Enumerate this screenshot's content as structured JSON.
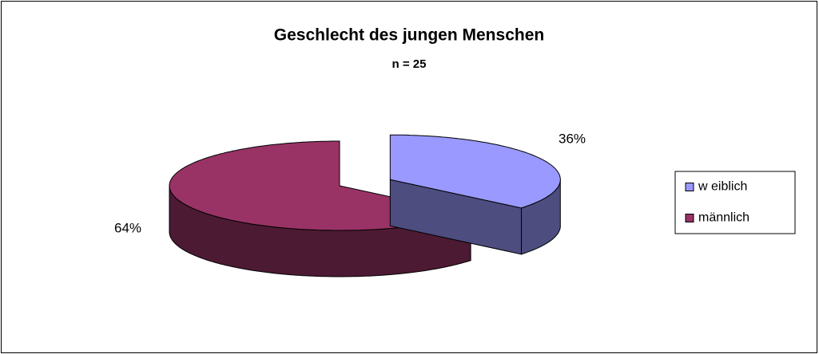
{
  "chart_data": {
    "type": "pie",
    "title": "Geschlecht des jungen Menschen",
    "subtitle": "n = 25",
    "categories": [
      "w eiblich",
      "männlich"
    ],
    "values": [
      36,
      64
    ],
    "value_labels": [
      "36%",
      "64%"
    ],
    "colors": [
      "#9999ff",
      "#993366"
    ],
    "legend": "right"
  }
}
